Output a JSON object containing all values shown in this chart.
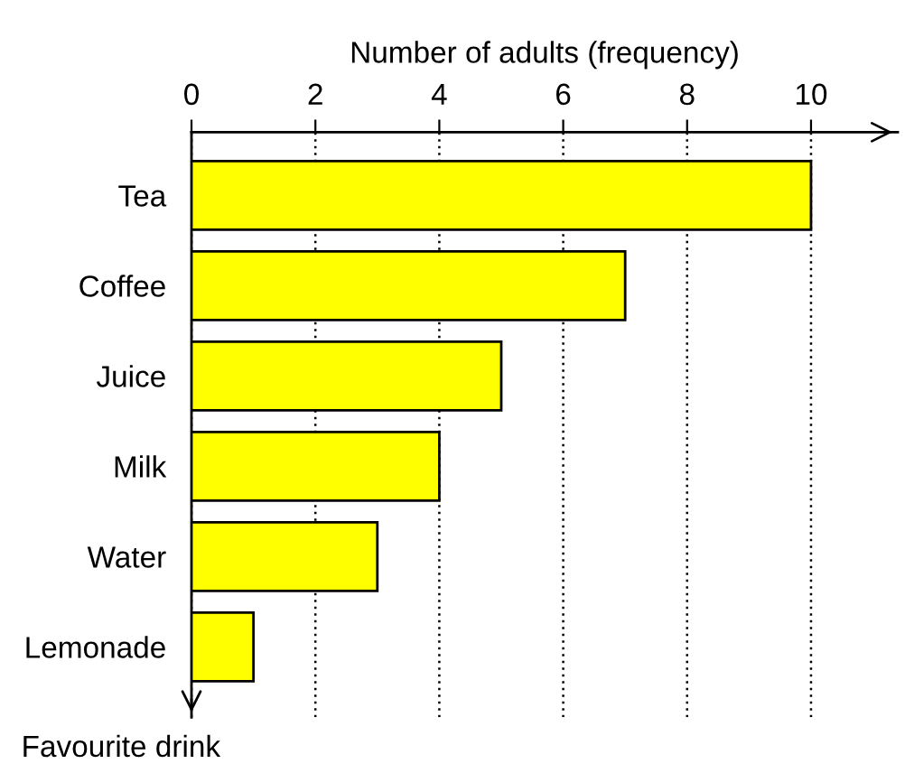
{
  "chart_data": {
    "type": "bar",
    "orientation": "horizontal",
    "xlabel": "Number of adults (frequency)",
    "ylabel": "Favourite drink",
    "categories": [
      "Tea",
      "Coffee",
      "Juice",
      "Milk",
      "Water",
      "Lemonade"
    ],
    "values": [
      10,
      7,
      5,
      4,
      3,
      1
    ],
    "color": "#ffff00",
    "xlim": [
      0,
      11.4
    ],
    "xticks": [
      0,
      2,
      4,
      6,
      8,
      10
    ],
    "grid": "x",
    "legend": false
  }
}
